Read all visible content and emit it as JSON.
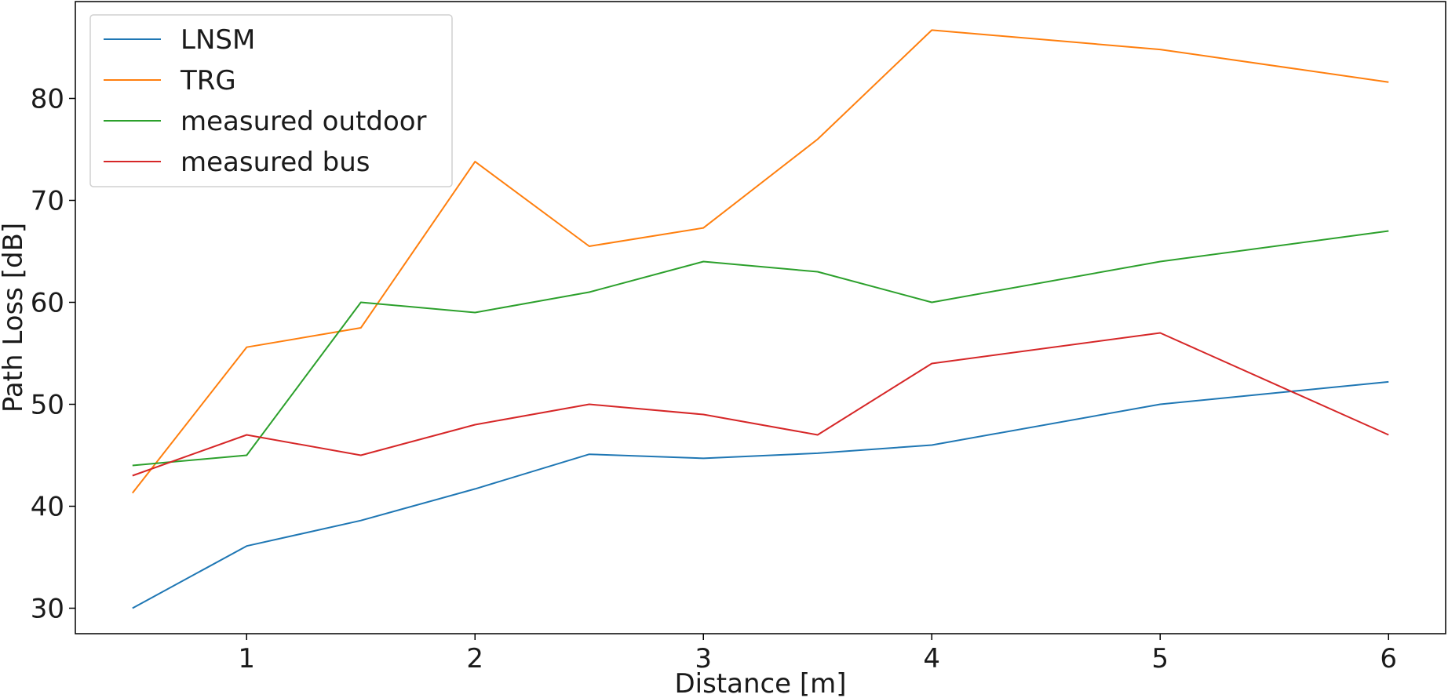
{
  "chart_data": {
    "type": "line",
    "title": "",
    "xlabel": "Distance [m]",
    "ylabel": "Path Loss [dB]",
    "xlim": [
      0.25,
      6.25
    ],
    "ylim": [
      27.5,
      89.5
    ],
    "x_ticks": [
      1,
      2,
      3,
      4,
      5,
      6
    ],
    "y_ticks": [
      30,
      40,
      50,
      60,
      70,
      80
    ],
    "grid": false,
    "legend_position": "top-left",
    "x": [
      0.5,
      1,
      1.5,
      2,
      2.5,
      3,
      3.5,
      4,
      5,
      6
    ],
    "series": [
      {
        "name": "LNSM",
        "color": "#1f77b4",
        "values": [
          30.0,
          36.1,
          38.6,
          41.7,
          45.1,
          44.7,
          45.2,
          46.0,
          50.0,
          52.2
        ]
      },
      {
        "name": "TRG",
        "color": "#ff7f0e",
        "values": [
          41.3,
          55.6,
          57.5,
          73.8,
          65.5,
          67.3,
          76.0,
          86.7,
          84.8,
          81.6
        ]
      },
      {
        "name": "measured outdoor",
        "color": "#2ca02c",
        "values": [
          44.0,
          45.0,
          60.0,
          59.0,
          61.0,
          64.0,
          63.0,
          60.0,
          64.0,
          67.0
        ]
      },
      {
        "name": "measured bus",
        "color": "#d62728",
        "values": [
          43.0,
          47.0,
          45.0,
          48.0,
          50.0,
          49.0,
          47.0,
          54.0,
          57.0,
          47.0
        ]
      }
    ]
  }
}
